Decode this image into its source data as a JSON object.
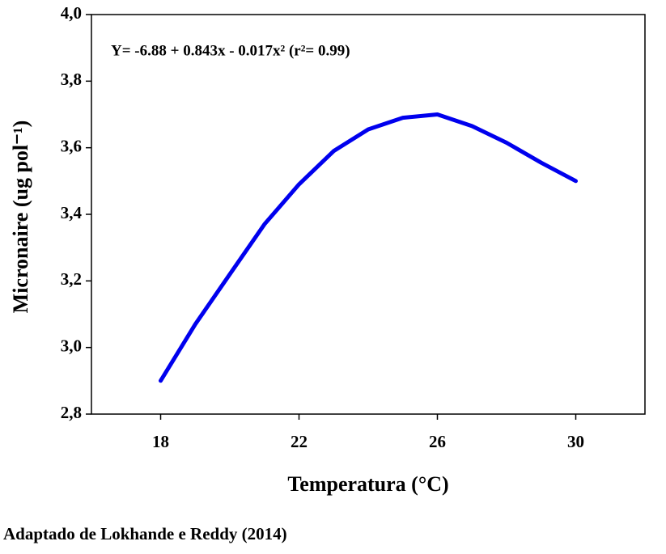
{
  "chart_data": {
    "type": "line",
    "annotation": "Y= -6.88 + 0.843x - 0.017x² (r²= 0.99)",
    "x_label": "Temperatura (°C)",
    "y_label": "Micronaire (ug pol⁻¹)",
    "caption": "Adaptado de Lokhande e Reddy (2014)",
    "x": [
      18,
      19,
      20,
      21,
      22,
      23,
      24,
      25,
      26,
      27,
      28,
      29,
      30
    ],
    "series": [
      {
        "color": "#0000ee",
        "values": [
          2.9,
          3.07,
          3.22,
          3.37,
          3.49,
          3.59,
          3.655,
          3.69,
          3.7,
          3.665,
          3.615,
          3.555,
          3.5
        ]
      }
    ],
    "xlim": [
      16,
      32
    ],
    "xticks": [
      18,
      22,
      26,
      30
    ],
    "ylim": [
      2.8,
      4.0
    ],
    "yticks": [
      {
        "value": 2.8,
        "label": "2,8"
      },
      {
        "value": 3.0,
        "label": "3,0"
      },
      {
        "value": 3.2,
        "label": "3,2"
      },
      {
        "value": 3.4,
        "label": "3,4"
      },
      {
        "value": 3.6,
        "label": "3,6"
      },
      {
        "value": 3.8,
        "label": "3,8"
      },
      {
        "value": 4.0,
        "label": "4,0"
      }
    ]
  }
}
